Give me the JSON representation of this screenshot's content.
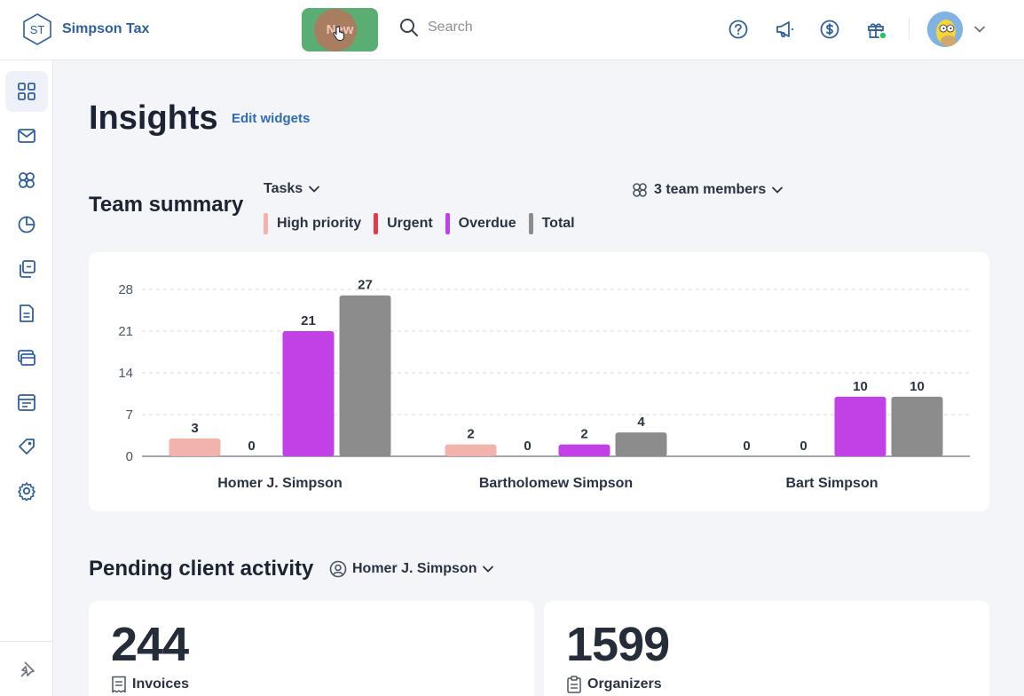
{
  "app": {
    "brand_initials": "ST",
    "brand_name": "Simpson Tax"
  },
  "topbar": {
    "new_label": "New",
    "search_placeholder": "Search",
    "icons": [
      "help-icon",
      "megaphone-icon",
      "dollar-icon",
      "gift-icon"
    ],
    "avatar": "avatar"
  },
  "sidebar": {
    "items": [
      "dashboard-icon",
      "mail-icon",
      "clients-icon",
      "insights-icon",
      "copy-icon",
      "document-icon",
      "cards-icon",
      "calendar-icon",
      "tag-icon",
      "settings-icon"
    ],
    "active": "dashboard-icon",
    "pin": "pin-icon"
  },
  "page": {
    "title": "Insights",
    "edit_widgets": "Edit widgets"
  },
  "team_summary": {
    "title": "Team summary",
    "filter_label": "Tasks",
    "members_label": "3 team members",
    "legend": [
      {
        "label": "High priority",
        "color": "#f2b3ac"
      },
      {
        "label": "Urgent",
        "color": "#e23b4a"
      },
      {
        "label": "Overdue",
        "color": "#c241e6"
      },
      {
        "label": "Total",
        "color": "#8c8c8c"
      }
    ]
  },
  "chart_data": {
    "type": "bar",
    "categories": [
      "Homer J. Simpson",
      "Bartholomew Simpson",
      "Bart Simpson"
    ],
    "series": [
      {
        "name": "High priority",
        "color": "#f2b3ac",
        "values": [
          3,
          2,
          0
        ]
      },
      {
        "name": "Urgent",
        "color": "#e23b4a",
        "values": [
          0,
          0,
          0
        ]
      },
      {
        "name": "Overdue",
        "color": "#c241e6",
        "values": [
          21,
          2,
          10
        ]
      },
      {
        "name": "Total",
        "color": "#8c8c8c",
        "values": [
          27,
          4,
          10
        ]
      }
    ],
    "yticks": [
      0,
      7,
      14,
      21,
      28
    ],
    "ylim": [
      0,
      28
    ],
    "grid": true,
    "title": "",
    "xlabel": "",
    "ylabel": ""
  },
  "pending": {
    "title": "Pending client activity",
    "person": "Homer J. Simpson",
    "cards": [
      {
        "value": "244",
        "label": "Invoices",
        "icon": "invoice-icon"
      },
      {
        "value": "1599",
        "label": "Organizers",
        "icon": "clipboard-icon"
      }
    ]
  }
}
